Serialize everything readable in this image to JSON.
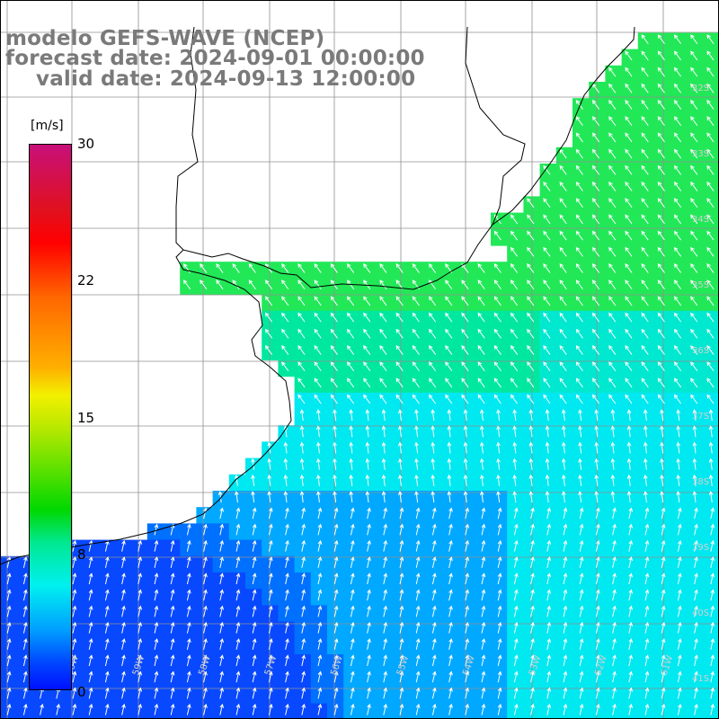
{
  "title": {
    "line1": "modelo GEFS-WAVE (NCEP)",
    "line2": "forecast date: 2024-09-01 00:00:00",
    "line3": "valid date: 2024-09-13 12:00:00"
  },
  "colorbar": {
    "units": "[m/s]",
    "ticks": [
      "30",
      "22",
      "15",
      "8",
      "0"
    ],
    "colors": [
      "#c8107a",
      "#ff0000",
      "#ff6600",
      "#f2f000",
      "#00d800",
      "#00f0f0",
      "#0048ff"
    ]
  },
  "map": {
    "lat_labels": [
      "32S",
      "33S",
      "34S",
      "35S",
      "36S",
      "37S",
      "38S",
      "39S",
      "40S",
      "41S"
    ],
    "lon_labels": [
      "60W",
      "59W",
      "58W",
      "57W",
      "56W",
      "55W",
      "54W",
      "53W",
      "52W",
      "51W"
    ],
    "region": "Rio de la Plata and southern Brazil coast",
    "field": "wind speed with direction arrows",
    "land_color": "#ffffff",
    "grid_color": "#909090",
    "arrow_color": "#ffffff"
  }
}
